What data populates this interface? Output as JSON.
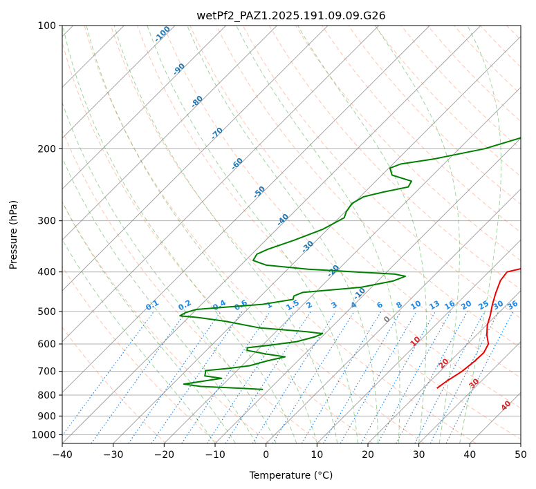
{
  "chart_data": {
    "type": "line",
    "title": "wetPf2_PAZ1.2025.191.09.09.G26",
    "xlabel": "Temperature (°C)",
    "ylabel": "Pressure (hPa)",
    "xlim": [
      -40,
      50
    ],
    "ylim": [
      1050,
      100
    ],
    "y_scale": "log",
    "grid": true,
    "x_ticks": [
      -40,
      -30,
      -20,
      -10,
      0,
      10,
      20,
      30,
      40,
      50
    ],
    "y_ticks": [
      100,
      200,
      300,
      400,
      500,
      600,
      700,
      800,
      900,
      1000
    ],
    "series": [
      {
        "name": "Temperature",
        "color": "#ee0000",
        "points": [
          {
            "p": 770,
            "t": 22.7
          },
          {
            "p": 740,
            "t": 23.2
          },
          {
            "p": 700,
            "t": 24.3
          },
          {
            "p": 660,
            "t": 24.8
          },
          {
            "p": 630,
            "t": 24.9
          },
          {
            "p": 600,
            "t": 24.1
          },
          {
            "p": 570,
            "t": 22.0
          },
          {
            "p": 540,
            "t": 20.2
          },
          {
            "p": 510,
            "t": 18.8
          },
          {
            "p": 480,
            "t": 17.1
          },
          {
            "p": 450,
            "t": 15.5
          },
          {
            "p": 420,
            "t": 14.0
          },
          {
            "p": 400,
            "t": 13.6
          },
          {
            "p": 390,
            "t": 16.5
          },
          {
            "p": 375,
            "t": 18.3
          },
          {
            "p": 360,
            "t": 17.3
          },
          {
            "p": 340,
            "t": 15.3
          },
          {
            "p": 320,
            "t": 13.8
          },
          {
            "p": 300,
            "t": 12.6
          },
          {
            "p": 270,
            "t": 11.0
          },
          {
            "p": 240,
            "t": 8.3
          },
          {
            "p": 210,
            "t": 5.6
          },
          {
            "p": 190,
            "t": 3.8
          },
          {
            "p": 170,
            "t": 2.2
          },
          {
            "p": 155,
            "t": 0.4
          },
          {
            "p": 140,
            "t": 1.0
          },
          {
            "p": 125,
            "t": 1.3
          },
          {
            "p": 115,
            "t": 1.2
          },
          {
            "p": 108,
            "t": 3.6
          },
          {
            "p": 100,
            "t": 6.5
          }
        ]
      },
      {
        "name": "Dewpoint",
        "color": "#008000",
        "points": [
          {
            "p": 775,
            "t": -11.2
          },
          {
            "p": 770,
            "t": -15.5
          },
          {
            "p": 762,
            "t": -24.0
          },
          {
            "p": 752,
            "t": -27.8
          },
          {
            "p": 745,
            "t": -26.0
          },
          {
            "p": 728,
            "t": -21.5
          },
          {
            "p": 718,
            "t": -25.3
          },
          {
            "p": 705,
            "t": -25.8
          },
          {
            "p": 697,
            "t": -26.2
          },
          {
            "p": 688,
            "t": -22.0
          },
          {
            "p": 678,
            "t": -18.5
          },
          {
            "p": 660,
            "t": -16.0
          },
          {
            "p": 645,
            "t": -13.3
          },
          {
            "p": 635,
            "t": -17.5
          },
          {
            "p": 622,
            "t": -22.0
          },
          {
            "p": 613,
            "t": -22.5
          },
          {
            "p": 604,
            "t": -18.5
          },
          {
            "p": 592,
            "t": -14.0
          },
          {
            "p": 576,
            "t": -11.3
          },
          {
            "p": 566,
            "t": -10.5
          },
          {
            "p": 560,
            "t": -14.0
          },
          {
            "p": 548,
            "t": -24.0
          },
          {
            "p": 528,
            "t": -32.0
          },
          {
            "p": 517,
            "t": -38.0
          },
          {
            "p": 512,
            "t": -42.0
          },
          {
            "p": 503,
            "t": -41.5
          },
          {
            "p": 494,
            "t": -40.0
          },
          {
            "p": 488,
            "t": -35.0
          },
          {
            "p": 480,
            "t": -28.0
          },
          {
            "p": 467,
            "t": -23.0
          },
          {
            "p": 458,
            "t": -23.5
          },
          {
            "p": 449,
            "t": -22.5
          },
          {
            "p": 436,
            "t": -12.0
          },
          {
            "p": 421,
            "t": -7.0
          },
          {
            "p": 410,
            "t": -5.5
          },
          {
            "p": 405,
            "t": -8.0
          },
          {
            "p": 394,
            "t": -26.0
          },
          {
            "p": 385,
            "t": -35.0
          },
          {
            "p": 375,
            "t": -38.5
          },
          {
            "p": 362,
            "t": -39.0
          },
          {
            "p": 352,
            "t": -37.8
          },
          {
            "p": 335,
            "t": -34.5
          },
          {
            "p": 315,
            "t": -31.0
          },
          {
            "p": 295,
            "t": -29.0
          },
          {
            "p": 285,
            "t": -29.8
          },
          {
            "p": 272,
            "t": -30.3
          },
          {
            "p": 262,
            "t": -29.3
          },
          {
            "p": 255,
            "t": -26.3
          },
          {
            "p": 248,
            "t": -22.5
          },
          {
            "p": 240,
            "t": -23.0
          },
          {
            "p": 232,
            "t": -28.0
          },
          {
            "p": 223,
            "t": -29.8
          },
          {
            "p": 218,
            "t": -28.5
          },
          {
            "p": 212,
            "t": -23.0
          },
          {
            "p": 200,
            "t": -15.0
          },
          {
            "p": 188,
            "t": -10.0
          },
          {
            "p": 178,
            "t": -6.3
          },
          {
            "p": 170,
            "t": -3.5
          },
          {
            "p": 164,
            "t": 0.3
          },
          {
            "p": 160,
            "t": 0.2
          },
          {
            "p": 148,
            "t": -1.2
          },
          {
            "p": 138,
            "t": -1.2
          },
          {
            "p": 131,
            "t": -1.8
          },
          {
            "p": 125,
            "t": -2.7
          },
          {
            "p": 115,
            "t": -2.2
          },
          {
            "p": 108,
            "t": -0.8
          },
          {
            "p": 102,
            "t": 0.6
          },
          {
            "p": 100,
            "t": 1.0
          }
        ]
      }
    ],
    "isotherm_labels": [
      "-100",
      "-90",
      "-80",
      "-70",
      "-60",
      "-50",
      "-40",
      "-30",
      "-20",
      "-10"
    ],
    "mixing_ratio_labels": [
      "0.1",
      "0.2",
      "0.4",
      "0.6",
      "1",
      "1.5",
      "2",
      "3",
      "4",
      "6",
      "8",
      "10",
      "13",
      "16",
      "20",
      "25",
      "30",
      "36"
    ],
    "mixing_ratio_values": [
      0.1,
      0.2,
      0.4,
      0.6,
      1,
      1.5,
      2,
      3,
      4,
      6,
      8,
      10,
      13,
      16,
      20,
      25,
      30,
      36
    ],
    "lower_labels": [
      "0",
      "10",
      "20",
      "30",
      "40"
    ],
    "colors": {
      "isotherm_label": "#1f77b4",
      "mixing_ratio": "#1e88e5",
      "lower_label": "#d62728",
      "zero_label": "#7f7f7f",
      "dry_adiabat": "#ff7f50",
      "moist_adiabat": "#2ca02c",
      "skewed_isotherm": "#808080",
      "grid": "#b0b0b0"
    }
  }
}
